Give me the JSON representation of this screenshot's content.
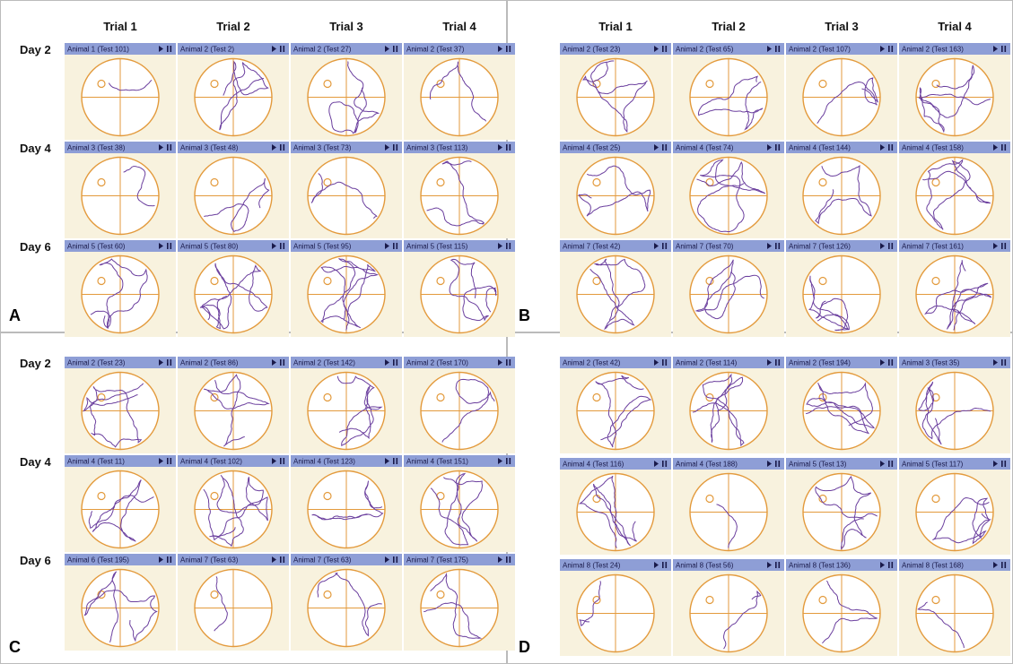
{
  "panels": [
    {
      "label": "A",
      "trials": [
        "Trial 1",
        "Trial 2",
        "Trial 3",
        "Trial 4"
      ],
      "days": [
        "Day 2",
        "Day 4",
        "Day 6"
      ],
      "rows": [
        [
          "Animal 1 (Test 101)",
          "Animal 2 (Test 2)",
          "Animal 2 (Test 27)",
          "Animal 2 (Test 37)"
        ],
        [
          "Animal 3 (Test 38)",
          "Animal 3 (Test 48)",
          "Animal 3 (Test 73)",
          "Animal 3 (Test 113)"
        ],
        [
          "Animal 5 (Test 60)",
          "Animal 5 (Test 80)",
          "Animal 5 (Test 95)",
          "Animal 5 (Test 115)"
        ]
      ]
    },
    {
      "label": "B",
      "trials": [
        "Trial 1",
        "Trial 2",
        "Trial 3",
        "Trial 4"
      ],
      "rows": [
        [
          "Animal 2 (Test 23)",
          "Animal 2 (Test 65)",
          "Animal 2 (Test 107)",
          "Animal 2 (Test 163)"
        ],
        [
          "Animal 4 (Test 25)",
          "Animal 4 (Test 74)",
          "Animal 4 (Test 144)",
          "Animal 4 (Test 158)"
        ],
        [
          "Animal 7 (Test 42)",
          "Animal 7 (Test 70)",
          "Animal 7 (Test 126)",
          "Animal 7 (Test 161)"
        ]
      ]
    },
    {
      "label": "C",
      "days": [
        "Day 2",
        "Day 4",
        "Day 6"
      ],
      "rows": [
        [
          "Animal 2 (Test 23)",
          "Animal 2 (Test 86)",
          "Animal 2 (Test 142)",
          "Animal 2 (Test 170)"
        ],
        [
          "Animal 4 (Test 11)",
          "Animal 4 (Test 102)",
          "Animal 4 (Test 123)",
          "Animal 4 (Test 151)"
        ],
        [
          "Animal 6 (Test 195)",
          "Animal 7 (Test 63)",
          "Animal 7 (Test 63)",
          "Animal 7 (Test 175)"
        ]
      ]
    },
    {
      "label": "D",
      "rows": [
        [
          "Animal 2 (Test 42)",
          "Animal 2 (Test 114)",
          "Animal 2 (Test 194)",
          "Animal 3 (Test 35)"
        ],
        [
          "Animal 4 (Test 116)",
          "Animal 4 (Test 188)",
          "Animal 5 (Test 13)",
          "Animal 5 (Test 117)"
        ],
        [
          "Animal 8 (Test 24)",
          "Animal 8 (Test 56)",
          "Animal 8 (Test 136)",
          "Animal 8 (Test 168)"
        ]
      ]
    }
  ]
}
